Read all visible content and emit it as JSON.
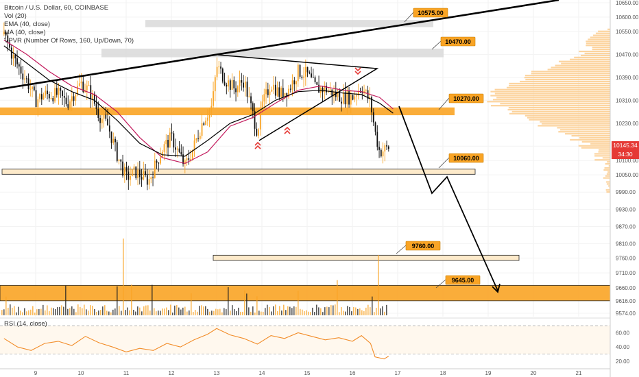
{
  "header": {
    "symbol_line": "Bitcoin / U.S. Dollar, 60, COINBASE",
    "vol_line": "Vol (20)",
    "ema1_line": "EMA (40, close)",
    "ema2_line": "MA (40, close)",
    "vpvr_line": "VPVR (Number Of Rows, 160, Up/Down, 70)"
  },
  "rsi": {
    "label": "RSI (14, close)",
    "levels": [
      70,
      30
    ]
  },
  "price_tags": {
    "last_price": "10145.34",
    "countdown": "34:30"
  },
  "colors": {
    "accent": "#f9a425",
    "zone_border": "#e08a00",
    "line": "#000000",
    "ema": "#c2185b",
    "rsi": "#f28c28"
  },
  "chart_data": {
    "type": "candlestick",
    "price_axis": {
      "min": 9574,
      "max": 10650,
      "ticks": [
        10650,
        10600,
        10550,
        10470,
        10390,
        10310,
        10230,
        10150,
        10100,
        10050,
        9990,
        9930,
        9870,
        9810,
        9760,
        9710,
        9660,
        9616,
        9574
      ]
    },
    "time_axis": {
      "labels": [
        "9",
        "10",
        "11",
        "12",
        "13",
        "14",
        "15",
        "16",
        "17",
        "18",
        "19",
        "20",
        "21"
      ]
    },
    "rsi_axis": {
      "ticks": [
        60,
        40,
        20
      ]
    },
    "levels": [
      {
        "label": "10575.00",
        "price": 10575
      },
      {
        "label": "10470.00",
        "price": 10470
      },
      {
        "label": "10270.00",
        "price": 10270
      },
      {
        "label": "10060.00",
        "price": 10060
      },
      {
        "label": "9760.00",
        "price": 9760
      },
      {
        "label": "9645.00",
        "price": 9645
      }
    ],
    "close_path": [
      {
        "t": 8.3,
        "p": 10540
      },
      {
        "t": 8.5,
        "p": 10460
      },
      {
        "t": 8.8,
        "p": 10380
      },
      {
        "t": 9.0,
        "p": 10310
      },
      {
        "t": 9.2,
        "p": 10330
      },
      {
        "t": 9.5,
        "p": 10330
      },
      {
        "t": 9.7,
        "p": 10300
      },
      {
        "t": 10.0,
        "p": 10370
      },
      {
        "t": 10.2,
        "p": 10340
      },
      {
        "t": 10.4,
        "p": 10260
      },
      {
        "t": 10.6,
        "p": 10220
      },
      {
        "t": 10.8,
        "p": 10120
      },
      {
        "t": 11.0,
        "p": 10040
      },
      {
        "t": 11.2,
        "p": 10060
      },
      {
        "t": 11.5,
        "p": 10030
      },
      {
        "t": 11.8,
        "p": 10140
      },
      {
        "t": 12.0,
        "p": 10180
      },
      {
        "t": 12.3,
        "p": 10080
      },
      {
        "t": 12.5,
        "p": 10150
      },
      {
        "t": 12.7,
        "p": 10240
      },
      {
        "t": 12.9,
        "p": 10290
      },
      {
        "t": 13.0,
        "p": 10430
      },
      {
        "t": 13.2,
        "p": 10380
      },
      {
        "t": 13.4,
        "p": 10350
      },
      {
        "t": 13.6,
        "p": 10380
      },
      {
        "t": 13.8,
        "p": 10260
      },
      {
        "t": 13.9,
        "p": 10200
      },
      {
        "t": 14.0,
        "p": 10290
      },
      {
        "t": 14.2,
        "p": 10370
      },
      {
        "t": 14.4,
        "p": 10330
      },
      {
        "t": 14.6,
        "p": 10350
      },
      {
        "t": 14.8,
        "p": 10410
      },
      {
        "t": 15.0,
        "p": 10400
      },
      {
        "t": 15.2,
        "p": 10350
      },
      {
        "t": 15.4,
        "p": 10350
      },
      {
        "t": 15.6,
        "p": 10330
      },
      {
        "t": 15.8,
        "p": 10320
      },
      {
        "t": 16.0,
        "p": 10320
      },
      {
        "t": 16.2,
        "p": 10360
      },
      {
        "t": 16.4,
        "p": 10300
      },
      {
        "t": 16.5,
        "p": 10200
      },
      {
        "t": 16.6,
        "p": 10130
      },
      {
        "t": 16.8,
        "p": 10145
      }
    ],
    "ema_path": [
      {
        "t": 8.3,
        "p": 10500
      },
      {
        "t": 8.8,
        "p": 10440
      },
      {
        "t": 9.3,
        "p": 10380
      },
      {
        "t": 9.8,
        "p": 10340
      },
      {
        "t": 10.3,
        "p": 10310
      },
      {
        "t": 10.8,
        "p": 10240
      },
      {
        "t": 11.3,
        "p": 10160
      },
      {
        "t": 11.8,
        "p": 10120
      },
      {
        "t": 12.3,
        "p": 10115
      },
      {
        "t": 12.8,
        "p": 10170
      },
      {
        "t": 13.3,
        "p": 10230
      },
      {
        "t": 13.8,
        "p": 10260
      },
      {
        "t": 14.3,
        "p": 10310
      },
      {
        "t": 14.8,
        "p": 10340
      },
      {
        "t": 15.3,
        "p": 10345
      },
      {
        "t": 15.8,
        "p": 10335
      },
      {
        "t": 16.2,
        "p": 10330
      },
      {
        "t": 16.6,
        "p": 10300
      },
      {
        "t": 16.9,
        "p": 10265
      }
    ],
    "ma_path": [
      {
        "t": 8.3,
        "p": 10520
      },
      {
        "t": 8.8,
        "p": 10470
      },
      {
        "t": 9.3,
        "p": 10410
      },
      {
        "t": 9.8,
        "p": 10360
      },
      {
        "t": 10.3,
        "p": 10330
      },
      {
        "t": 10.8,
        "p": 10270
      },
      {
        "t": 11.3,
        "p": 10180
      },
      {
        "t": 11.8,
        "p": 10110
      },
      {
        "t": 12.3,
        "p": 10090
      },
      {
        "t": 12.8,
        "p": 10130
      },
      {
        "t": 13.3,
        "p": 10220
      },
      {
        "t": 13.8,
        "p": 10250
      },
      {
        "t": 14.3,
        "p": 10300
      },
      {
        "t": 14.8,
        "p": 10345
      },
      {
        "t": 15.3,
        "p": 10360
      },
      {
        "t": 15.8,
        "p": 10345
      },
      {
        "t": 16.2,
        "p": 10340
      },
      {
        "t": 16.6,
        "p": 10320
      },
      {
        "t": 16.9,
        "p": 10280
      }
    ],
    "rsi_path": [
      {
        "t": 8.3,
        "p": 52
      },
      {
        "t": 8.6,
        "p": 40
      },
      {
        "t": 8.9,
        "p": 35
      },
      {
        "t": 9.2,
        "p": 45
      },
      {
        "t": 9.5,
        "p": 48
      },
      {
        "t": 9.8,
        "p": 42
      },
      {
        "t": 10.1,
        "p": 55
      },
      {
        "t": 10.4,
        "p": 46
      },
      {
        "t": 10.7,
        "p": 40
      },
      {
        "t": 11.0,
        "p": 33
      },
      {
        "t": 11.3,
        "p": 38
      },
      {
        "t": 11.6,
        "p": 35
      },
      {
        "t": 11.9,
        "p": 45
      },
      {
        "t": 12.2,
        "p": 40
      },
      {
        "t": 12.5,
        "p": 50
      },
      {
        "t": 12.8,
        "p": 58
      },
      {
        "t": 13.0,
        "p": 66
      },
      {
        "t": 13.3,
        "p": 57
      },
      {
        "t": 13.6,
        "p": 52
      },
      {
        "t": 13.9,
        "p": 44
      },
      {
        "t": 14.2,
        "p": 56
      },
      {
        "t": 14.5,
        "p": 52
      },
      {
        "t": 14.8,
        "p": 60
      },
      {
        "t": 15.1,
        "p": 55
      },
      {
        "t": 15.4,
        "p": 50
      },
      {
        "t": 15.7,
        "p": 53
      },
      {
        "t": 16.0,
        "p": 48
      },
      {
        "t": 16.2,
        "p": 56
      },
      {
        "t": 16.4,
        "p": 45
      },
      {
        "t": 16.5,
        "p": 26
      },
      {
        "t": 16.7,
        "p": 23
      },
      {
        "t": 16.8,
        "p": 27
      }
    ]
  }
}
